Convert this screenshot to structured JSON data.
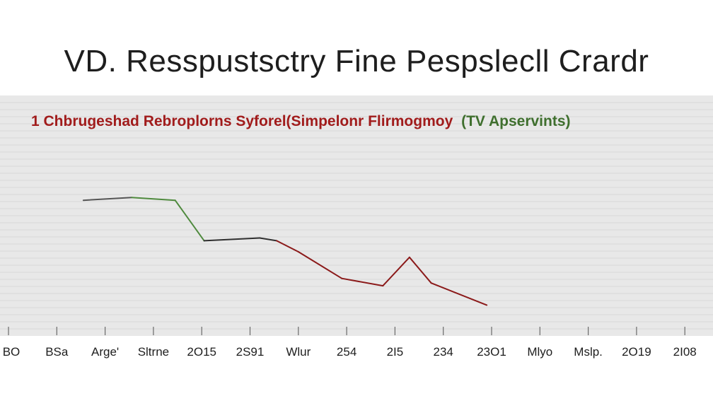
{
  "chart_data": {
    "type": "line",
    "title": "VD. Resspustsctry Fine Pespslecll Crardr",
    "subtitle": {
      "main": "1 Chbrugeshad Rebroplorns Syforel(Simpelonr Flirmogmoy",
      "tail": "(TV Apservints)"
    },
    "categories": [
      "BO",
      "BSa",
      "Arge'",
      "Sltrne",
      "2O15",
      "2S91",
      "Wlur",
      "254",
      "2I5",
      "234",
      "23O1",
      "Mlyo",
      "Mslp.",
      "2O19",
      "2I08"
    ],
    "series": [
      {
        "x": [
          1.55,
          2.55,
          3.45,
          4.05,
          5.2,
          5.55,
          6.0,
          6.9,
          7.75,
          8.3,
          8.75,
          9.9
        ],
        "values": [
          6.8,
          6.95,
          6.8,
          4.6,
          4.75,
          4.6,
          4.0,
          2.55,
          2.15,
          3.7,
          2.3,
          1.1
        ],
        "segment_colors": [
          "#555555",
          "#4f8a3e",
          "#4f8a3e",
          "#2f2f2f",
          "#2f2f2f",
          "#8b1a1a",
          "#8b1a1a",
          "#8b1a1a",
          "#8b1a1a",
          "#8b1a1a",
          "#8b1a1a"
        ]
      }
    ],
    "ylim": [
      0,
      10
    ],
    "grid": true,
    "colors": {
      "title": "#1e1e1e",
      "subtitle_main": "#a11c1c",
      "subtitle_tail": "#3f6f2e",
      "band": "#e8e8e8",
      "gridline": "#d9d9d9"
    }
  }
}
